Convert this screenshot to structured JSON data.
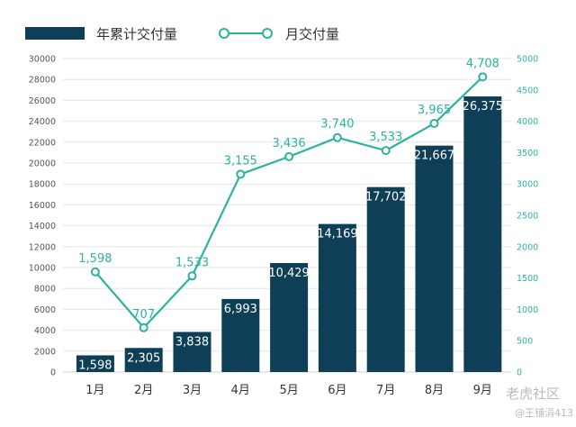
{
  "colors": {
    "bar": "#0e3f57",
    "line": "#2bb39e",
    "grid": "#e3e6e8",
    "tick_left": "#555555",
    "tick_right": "#2bb39e",
    "text": "#333333",
    "watermark": "#bbbbbb"
  },
  "legend": {
    "bar_label": "年累计交付量",
    "line_label": "月交付量"
  },
  "watermark": {
    "site": "老虎社区",
    "author": "@王铺涓413"
  },
  "chart_data": {
    "type": "bar",
    "categories": [
      "1月",
      "2月",
      "3月",
      "4月",
      "5月",
      "6月",
      "7月",
      "8月",
      "9月"
    ],
    "series": [
      {
        "name": "年累计交付量",
        "type": "bar",
        "axis": "left",
        "values": [
          1598,
          2305,
          3838,
          6993,
          10429,
          14169,
          17702,
          21667,
          26375
        ],
        "labels": [
          "1,598",
          "2,305",
          "3,838",
          "6,993",
          "10,429",
          "14,169",
          "17,702",
          "21,667",
          "26,375"
        ]
      },
      {
        "name": "月交付量",
        "type": "line",
        "axis": "right",
        "values": [
          1598,
          707,
          1533,
          3155,
          3436,
          3740,
          3533,
          3965,
          4708
        ],
        "labels": [
          "1,598",
          "707",
          "1,533",
          "3,155",
          "3,436",
          "3,740",
          "3,533",
          "3,965",
          "4,708"
        ]
      }
    ],
    "y_left": {
      "ylim": [
        0,
        30000
      ],
      "ticks": [
        "0",
        "2000",
        "4000",
        "6000",
        "8000",
        "10000",
        "12000",
        "14000",
        "16000",
        "18000",
        "20000",
        "22000",
        "24000",
        "26000",
        "28000",
        "30000"
      ]
    },
    "y_right": {
      "ylim": [
        0,
        5000
      ],
      "ticks": [
        "0",
        "500",
        "1000",
        "1500",
        "2000",
        "2500",
        "3000",
        "3500",
        "4000",
        "4500",
        "5000"
      ]
    },
    "grid": true,
    "legend_position": "top-left"
  }
}
